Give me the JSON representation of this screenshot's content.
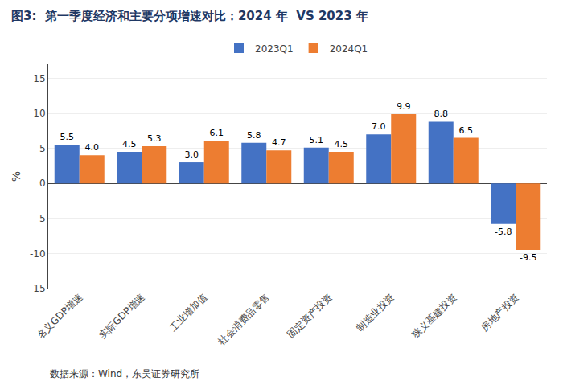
{
  "chart_data": {
    "type": "bar",
    "title": "图3:  第一季度经济和主要分项增速对比：2024 年  VS 2023 年",
    "categories": [
      "名义GDP增速",
      "实际GDP增速",
      "工业增加值",
      "社会消费品零售",
      "固定资产投资",
      "制造业投资",
      "狭义基建投资",
      "房地产投资"
    ],
    "series": [
      {
        "name": "2023Q1",
        "color": "#4472C4",
        "values": [
          5.5,
          4.5,
          3.0,
          5.8,
          5.1,
          7.0,
          8.8,
          -5.8
        ],
        "value_labels": [
          "5.5",
          "4.5",
          "3.0",
          "5.8",
          "5.1",
          "7.0",
          "8.8",
          "-5.8"
        ]
      },
      {
        "name": "2024Q1",
        "color": "#ED7D31",
        "values": [
          4.0,
          5.3,
          6.1,
          4.7,
          4.5,
          9.9,
          6.5,
          -9.5
        ],
        "value_labels": [
          "4.0",
          "5.3",
          "6.1",
          "4.7",
          "4.5",
          "9.9",
          "6.5",
          "-9.5"
        ]
      }
    ],
    "ylabel": "%",
    "ylim": [
      -15,
      17
    ],
    "yticks": [
      -15,
      -10,
      -5,
      0,
      5,
      10,
      15
    ],
    "grid": true,
    "data_labels": true,
    "annotations": [
      "数据来源：Wind，东吴证券研究所"
    ]
  }
}
